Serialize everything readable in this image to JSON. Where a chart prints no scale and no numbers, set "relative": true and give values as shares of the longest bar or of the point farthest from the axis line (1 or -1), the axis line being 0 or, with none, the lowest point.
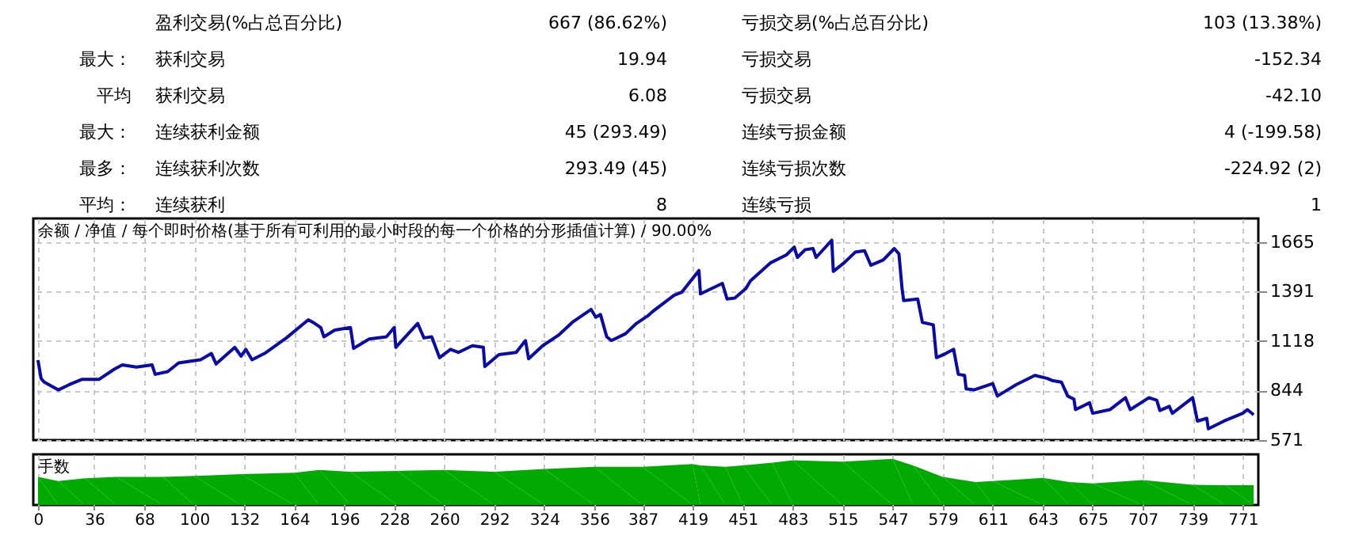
{
  "chart_data": [
    {
      "type": "other",
      "annotations": [
        "盈利交易(%占总百分比)",
        "667 (86.62%)",
        "亏损交易(%占总百分比)",
        "103 (13.38%)",
        "最大：",
        "获利交易",
        "19.94",
        "亏损交易",
        "-152.34",
        "平均",
        "获利交易",
        "6.08",
        "亏损交易",
        "-42.10",
        "最大：",
        "连续获利金额",
        "45 (293.49)",
        "连续亏损金额",
        "4 (-199.58)",
        "最多：",
        "连续获利次数",
        "293.49 (45)",
        "连续亏损次数",
        "-224.92 (2)",
        "平均：",
        "连续获利",
        "8",
        "连续亏损",
        "1"
      ]
    },
    {
      "type": "line",
      "title": "余额 / 净值 / 每个即时价格(基于所有可利用的最小时段的每一个价格的分形插值计算) / 90.00%",
      "x": [
        0,
        2,
        4,
        13,
        20,
        28,
        39,
        49,
        54,
        63,
        73,
        75,
        83,
        90,
        104,
        111,
        114,
        126,
        130,
        133,
        137,
        145,
        159,
        173,
        176,
        181,
        183,
        190,
        200,
        202,
        212,
        223,
        228,
        229,
        243,
        247,
        252,
        257,
        264,
        269,
        278,
        285,
        286,
        295,
        306,
        312,
        314,
        323,
        333,
        342,
        354,
        357,
        360,
        364,
        367,
        376,
        383,
        390,
        393,
        407,
        412,
        423,
        424,
        438,
        441,
        446,
        453,
        456,
        469,
        479,
        484,
        486,
        491,
        496,
        498,
        508,
        509,
        516,
        523,
        529,
        533,
        541,
        548,
        551,
        553,
        554,
        563,
        566,
        573,
        575,
        581,
        586,
        589,
        593,
        594,
        599,
        611,
        614,
        626,
        638,
        646,
        649,
        655,
        659,
        663,
        664,
        673,
        675,
        686,
        696,
        699,
        711,
        716,
        718,
        724,
        726,
        739,
        742,
        748,
        749,
        759,
        771,
        774,
        778
      ],
      "series": [
        {
          "color": "#0a0aa8",
          "values": [
            1012,
            911,
            891,
            848,
            877,
            906,
            906,
            963,
            986,
            974,
            986,
            934,
            949,
            997,
            1014,
            1049,
            991,
            1083,
            1034,
            1072,
            1014,
            1049,
            1135,
            1235,
            1221,
            1192,
            1141,
            1178,
            1192,
            1077,
            1129,
            1141,
            1192,
            1083,
            1215,
            1135,
            1141,
            1026,
            1072,
            1055,
            1092,
            1083,
            977,
            1043,
            1055,
            1120,
            1020,
            1092,
            1149,
            1221,
            1292,
            1249,
            1264,
            1141,
            1120,
            1158,
            1215,
            1255,
            1278,
            1370,
            1387,
            1507,
            1378,
            1436,
            1350,
            1355,
            1407,
            1450,
            1550,
            1593,
            1636,
            1579,
            1622,
            1628,
            1579,
            1674,
            1502,
            1550,
            1608,
            1616,
            1536,
            1565,
            1628,
            1599,
            1407,
            1341,
            1350,
            1221,
            1207,
            1026,
            1049,
            1072,
            934,
            928,
            854,
            848,
            883,
            814,
            877,
            928,
            911,
            900,
            891,
            814,
            797,
            739,
            777,
            719,
            739,
            805,
            739,
            805,
            791,
            734,
            757,
            719,
            805,
            676,
            691,
            633,
            676,
            719,
            739,
            711
          ]
        }
      ],
      "xlim": [
        -3,
        781
      ],
      "xticks": [
        0,
        36,
        68,
        100,
        132,
        164,
        196,
        228,
        260,
        292,
        324,
        356,
        387,
        419,
        451,
        483,
        515,
        547,
        579,
        611,
        643,
        675,
        707,
        739,
        771
      ],
      "ylim": [
        571,
        1794
      ],
      "yticks": [
        571,
        844,
        1118,
        1391,
        1665
      ],
      "grid": true,
      "tick_labels": "y",
      "line_style": "solid"
    },
    {
      "type": "area",
      "title": "手数",
      "relative": true,
      "x": [
        0,
        13,
        30,
        50,
        80,
        100,
        130,
        164,
        180,
        200,
        230,
        260,
        292,
        324,
        356,
        387,
        419,
        424,
        440,
        451,
        470,
        483,
        515,
        547,
        560,
        579,
        600,
        611,
        643,
        660,
        675,
        707,
        739,
        760,
        778
      ],
      "series": [
        {
          "color": "#00aa00",
          "values": [
            0.61,
            0.52,
            0.58,
            0.61,
            0.61,
            0.63,
            0.67,
            0.7,
            0.76,
            0.72,
            0.74,
            0.76,
            0.72,
            0.78,
            0.83,
            0.83,
            0.89,
            0.86,
            0.83,
            0.86,
            0.92,
            0.97,
            0.94,
            1,
            0.86,
            0.61,
            0.5,
            0.52,
            0.59,
            0.5,
            0.47,
            0.54,
            0.44,
            0.43,
            0.43
          ]
        }
      ],
      "xlim": [
        -3,
        781
      ],
      "xticks": [
        0,
        36,
        68,
        100,
        132,
        164,
        196,
        228,
        260,
        292,
        324,
        356,
        387,
        419,
        451,
        483,
        515,
        547,
        579,
        611,
        643,
        675,
        707,
        739,
        771
      ],
      "grid": "x",
      "tick_labels": "x"
    }
  ]
}
